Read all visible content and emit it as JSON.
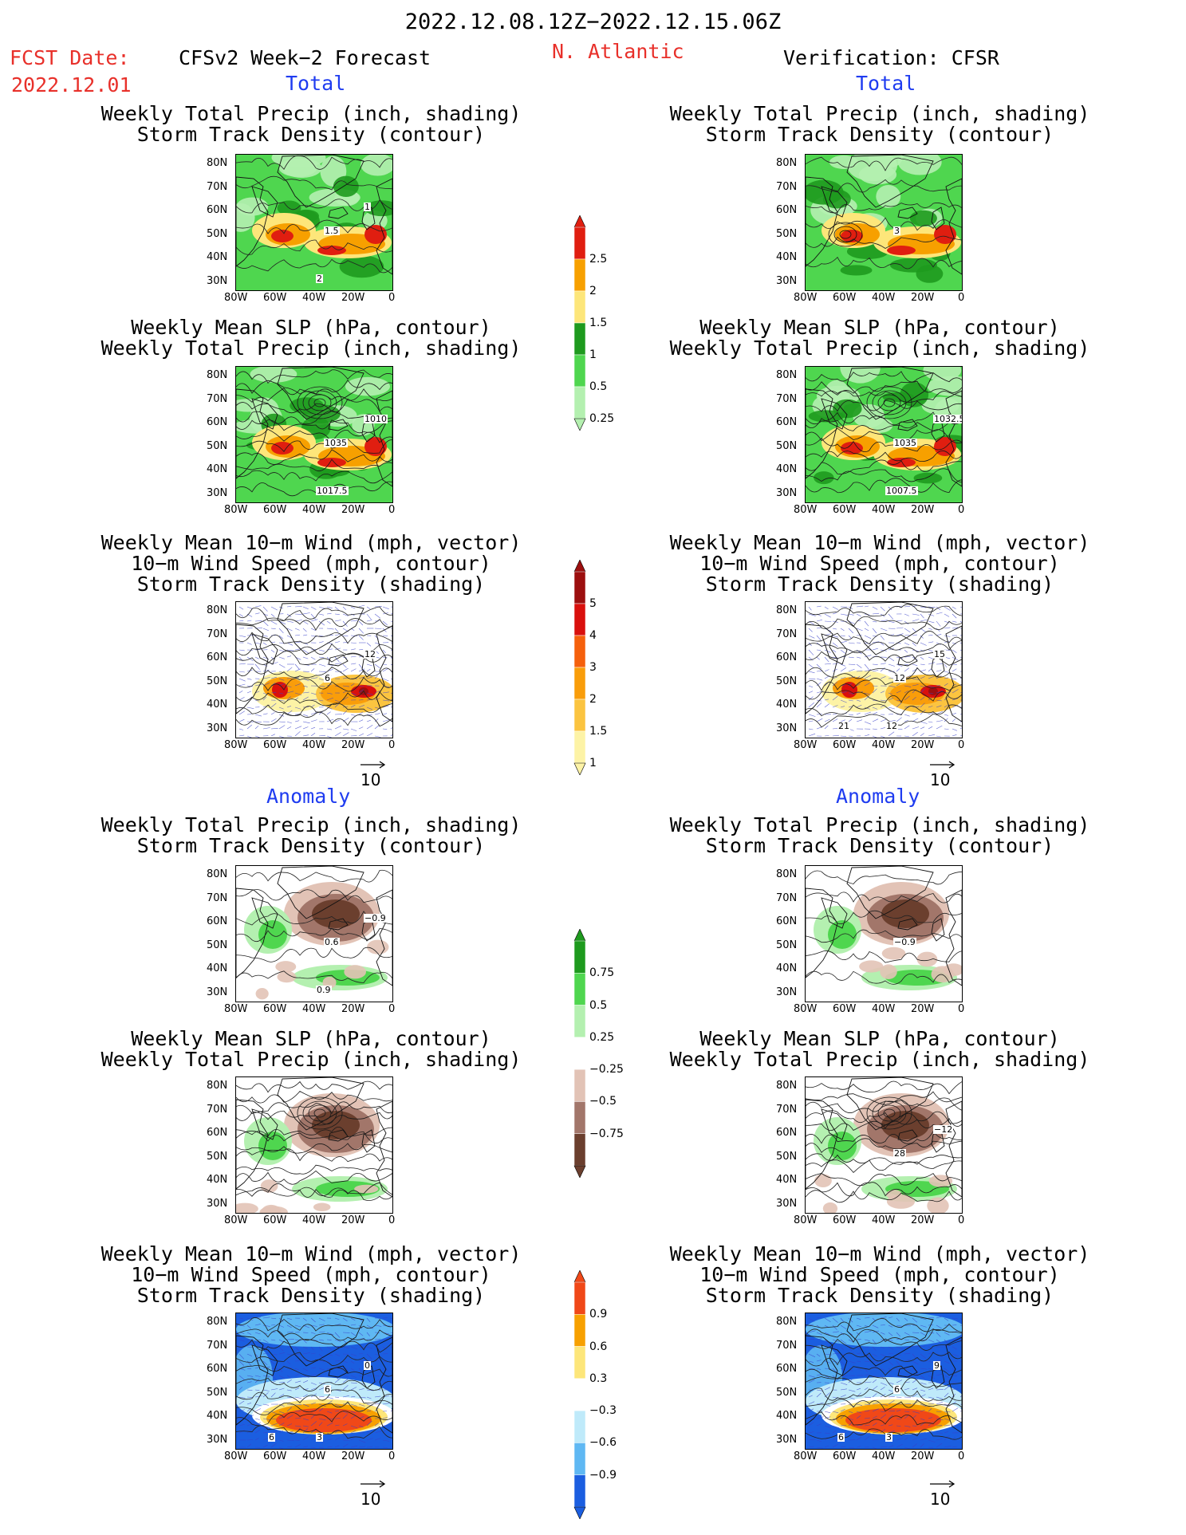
{
  "header": {
    "date_range": "2022.12.08.12Z−2022.12.15.06Z",
    "fcst_label": "FCST Date:",
    "fcst_date": "2022.12.01",
    "forecast_title": "CFSv2 Week−2 Forecast",
    "region": "N. Atlantic",
    "verification_title": "Verification: CFSR"
  },
  "sections": {
    "total": "Total",
    "anomaly": "Anomaly"
  },
  "titles": {
    "precip_storm": [
      "Weekly Total Precip (inch, shading)",
      "Storm Track Density (contour)"
    ],
    "slp_precip": [
      "Weekly Mean SLP (hPa, contour)",
      "Weekly Total Precip (inch, shading)"
    ],
    "wind_storm": [
      "Weekly Mean 10−m Wind (mph, vector)",
      "10−m Wind Speed (mph, contour)",
      "Storm Track Density (shading)"
    ]
  },
  "axes": {
    "yticks": [
      "80N",
      "70N",
      "60N",
      "50N",
      "40N",
      "30N"
    ],
    "xticks": [
      "80W",
      "60W",
      "40W",
      "20W",
      "0"
    ]
  },
  "vector_ref": "10",
  "colorbars": {
    "precip_total": {
      "labels": [
        "2.5",
        "2",
        "1.5",
        "1",
        "0.5",
        "0.25"
      ],
      "colors": [
        "#e01e10",
        "#f7a000",
        "#fde67a",
        "#1e9a1e",
        "#4fd64f",
        "#b4f0b0"
      ]
    },
    "storm_total": {
      "labels": [
        "5",
        "4",
        "3",
        "2",
        "1.5",
        "1"
      ],
      "colors": [
        "#9c0f0f",
        "#d9100d",
        "#f5600c",
        "#f99d0a",
        "#fbc440",
        "#fdf3a6"
      ]
    },
    "precip_anom": {
      "labels": [
        "0.75",
        "0.5",
        "0.25",
        "−0.25",
        "−0.5",
        "−0.75"
      ],
      "colors": [
        "#1e9a1e",
        "#4fd64f",
        "#b4f0b0",
        "#ffffff",
        "#e2c3b6",
        "#a2766a",
        "#6b3f2e"
      ]
    },
    "storm_anom": {
      "labels": [
        "0.9",
        "0.6",
        "0.3",
        "−0.3",
        "−0.6",
        "−0.9"
      ],
      "colors": [
        "#f04818",
        "#f7a000",
        "#fde67a",
        "#ffffff",
        "#bfeafa",
        "#5fb8f3",
        "#1b5ee0"
      ]
    }
  },
  "contour_labels": {
    "f_precip_total": [
      "1.5",
      "1",
      "2"
    ],
    "v_precip_total": [
      "3"
    ],
    "f_slp_total": [
      "1035",
      "1010",
      "1017.5"
    ],
    "v_slp_total": [
      "1035",
      "1032.5",
      "1007.5"
    ],
    "f_wind_total": [
      "6",
      "12"
    ],
    "v_wind_total": [
      "12",
      "15",
      "12",
      "21"
    ],
    "f_precip_anom": [
      "0.6",
      "−0.9",
      "0.9"
    ],
    "v_precip_anom": [
      "−0.9"
    ],
    "f_slp_anom": [],
    "v_slp_anom": [
      "28",
      "−12"
    ],
    "f_wind_anom": [
      "6",
      "0",
      "3",
      "6"
    ],
    "v_wind_anom": [
      "6",
      "9",
      "3",
      "6"
    ]
  }
}
